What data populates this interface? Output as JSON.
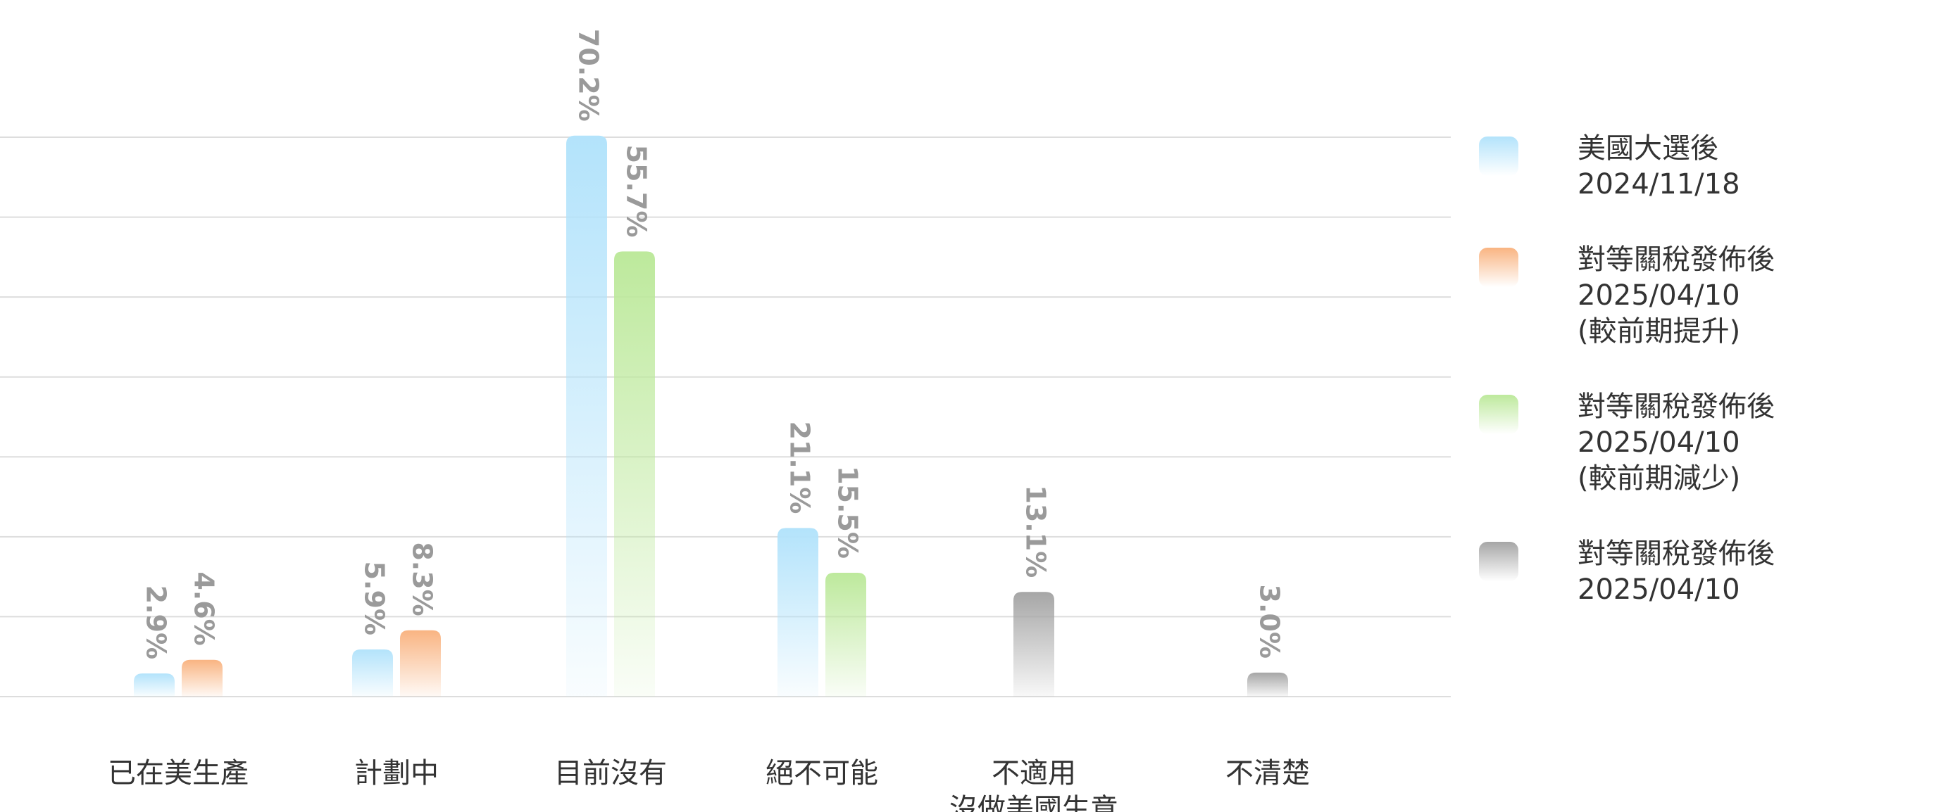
{
  "chart_data": {
    "type": "bar",
    "categories": [
      [
        "已在美生產"
      ],
      [
        "計劃中"
      ],
      [
        "目前沒有"
      ],
      [
        "絕不可能"
      ],
      [
        "不適用",
        "沒做美國生意"
      ],
      [
        "不清楚"
      ]
    ],
    "series": [
      {
        "name": [
          "美國大選後",
          "2024/11/18"
        ],
        "color": "#b3e3fb"
      },
      {
        "name": [
          "對等關稅發佈後",
          "2025/04/10",
          "(較前期提升)"
        ],
        "color": "#f9b482"
      },
      {
        "name": [
          "對等關稅發佈後",
          "2025/04/10",
          "(較前期減少)"
        ],
        "color": "#bde99c"
      },
      {
        "name": [
          "對等關稅發佈後",
          "2025/04/10"
        ],
        "color": "#a6a6a6"
      }
    ],
    "groups": [
      {
        "bars": [
          {
            "series": 0,
            "value": 2.9,
            "label": "2.9%"
          },
          {
            "series": 1,
            "value": 4.6,
            "label": "4.6%"
          }
        ]
      },
      {
        "bars": [
          {
            "series": 0,
            "value": 5.9,
            "label": "5.9%"
          },
          {
            "series": 1,
            "value": 8.3,
            "label": "8.3%"
          }
        ]
      },
      {
        "bars": [
          {
            "series": 0,
            "value": 70.2,
            "label": "70.2%"
          },
          {
            "series": 2,
            "value": 55.7,
            "label": "55.7%"
          }
        ]
      },
      {
        "bars": [
          {
            "series": 0,
            "value": 21.1,
            "label": "21.1%"
          },
          {
            "series": 2,
            "value": 15.5,
            "label": "15.5%"
          }
        ]
      },
      {
        "bars": [
          {
            "series": 3,
            "value": 13.1,
            "label": "13.1%"
          }
        ]
      },
      {
        "bars": [
          {
            "series": 3,
            "value": 3.0,
            "label": "3.0%"
          }
        ]
      }
    ],
    "ylim": [
      0,
      70
    ],
    "y_gridlines": [
      0,
      10,
      20,
      30,
      40,
      50,
      60,
      70
    ],
    "grid": true,
    "legend_position": "right"
  }
}
